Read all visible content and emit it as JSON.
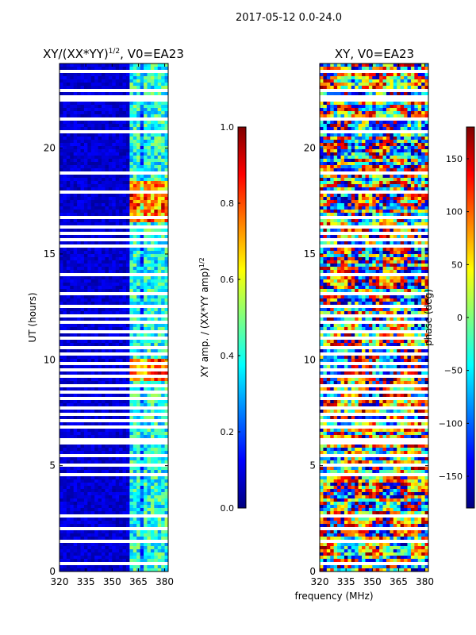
{
  "figure": {
    "suptitle": "2017-05-12 0.0-24.0",
    "shared_xlabel": "frequency (MHz)"
  },
  "chart_data": [
    {
      "type": "heatmap",
      "id": "amp",
      "title": "XY/(XX*YY)^1/2, V0=EA23",
      "title_main": "XY/(XX*YY)",
      "title_sup": "1/2",
      "title_tail": ", V0=EA23",
      "xlabel": "",
      "ylabel": "UT (hours)",
      "xlim": [
        320,
        382
      ],
      "ylim": [
        0,
        24
      ],
      "x_ticks": [
        320,
        335,
        350,
        365,
        380
      ],
      "y_ticks": [
        0,
        5,
        10,
        15,
        20
      ],
      "colormap": "jet",
      "colorbar": {
        "label": "XY amp. / (XX*YY amp)^1/2",
        "label_main": "XY amp. / (XX*YY amp)",
        "label_sup": "1/2",
        "range": [
          0,
          1
        ],
        "ticks": [
          0.0,
          0.2,
          0.4,
          0.6,
          0.8,
          1.0
        ],
        "tick_labels": [
          "0.0",
          "0.2",
          "0.4",
          "0.6",
          "0.8",
          "1.0"
        ]
      },
      "description": "Mostly low amplitude (0.0-0.15) across 320-360 MHz; elevated amplitude (0.3-0.8) in 362-380 MHz channels, peaking near 16.5-18.5 UT and 9-10 UT; white gaps mark flagged times"
    },
    {
      "type": "heatmap",
      "id": "phase",
      "title": "XY, V0=EA23",
      "xlabel": "",
      "ylabel": "",
      "xlim": [
        320,
        382
      ],
      "ylim": [
        0,
        24
      ],
      "x_ticks": [
        320,
        335,
        350,
        365,
        380
      ],
      "y_ticks": [
        0,
        5,
        10,
        15,
        20
      ],
      "colormap": "jet",
      "colorbar": {
        "label": "phase (deg)",
        "range": [
          -180,
          180
        ],
        "ticks": [
          -150,
          -100,
          -50,
          0,
          50,
          100,
          150
        ],
        "tick_labels": [
          "−150",
          "−100",
          "−50",
          "0",
          "50",
          "100",
          "150"
        ]
      },
      "description": "Phase varies widely between -180 and 180 deg across all channels and times; white gaps mark flagged times"
    }
  ],
  "colors": {
    "jet": [
      "#00007f",
      "#0000ff",
      "#007fff",
      "#00ffff",
      "#7fff7f",
      "#ffff00",
      "#ff7f00",
      "#ff0000",
      "#7f0000"
    ],
    "flag": "#ffffff"
  },
  "flagged_ut_hours": [
    0.4,
    0.75,
    1.4,
    1.95,
    2.05,
    2.6,
    3.15,
    3.3,
    3.45,
    4.6,
    5.05,
    5.45,
    6.0,
    6.1,
    6.25,
    6.85,
    7.15,
    7.45,
    7.75,
    7.95,
    8.2,
    8.45,
    8.75,
    9.0,
    9.25,
    9.55,
    9.8,
    10.05,
    10.3,
    10.55,
    10.8,
    11.05,
    11.3,
    11.55,
    11.8,
    12.05,
    12.3,
    12.55,
    13.1,
    13.5,
    14.0,
    14.1,
    14.25,
    14.7,
    15.0,
    15.35,
    15.65,
    15.95,
    16.25,
    16.5,
    16.75,
    17.25,
    17.55,
    17.95,
    18.3,
    18.6,
    18.8,
    19.2,
    19.8,
    20.55,
    20.75,
    20.85,
    21.35,
    21.6,
    22.05,
    22.25,
    22.45,
    22.75,
    23.1,
    23.4,
    23.6
  ]
}
